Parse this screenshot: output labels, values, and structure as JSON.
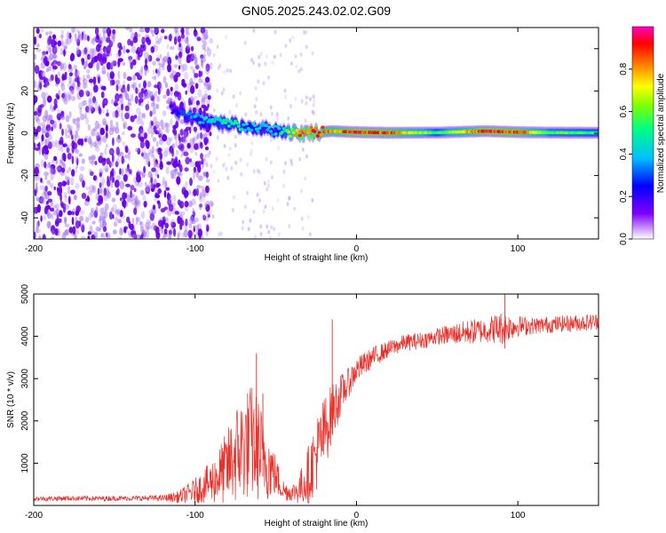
{
  "title": "GN05.2025.243.02.02.G09",
  "colors": {
    "snr_line": "#e8302a",
    "spectrogram_sparse": "#a070f0",
    "spectrogram_dense": "#6a00e8"
  },
  "chart_data": [
    {
      "type": "heatmap",
      "title": "GN05.2025.243.02.02.G09",
      "xlabel": "Height of straight line (km)",
      "ylabel": "Frequency (Hz)",
      "xlim": [
        -200,
        150
      ],
      "ylim": [
        -50,
        50
      ],
      "x_ticks": [
        -200,
        -100,
        0,
        100
      ],
      "x_tick_labels": [
        "-200",
        "-100",
        "0",
        "100"
      ],
      "y_ticks": [
        -40,
        -20,
        0,
        20,
        40
      ],
      "y_tick_labels": [
        "-40",
        "-20",
        "0",
        "20",
        "40"
      ],
      "colorbar": {
        "label": "Normalized spectral amplitude",
        "range": [
          0,
          1
        ],
        "ticks": [
          0,
          0.2,
          0.4,
          0.6,
          0.8
        ],
        "tick_labels": [
          "0.0",
          "0.2",
          "0.4",
          "0.6",
          "0.8"
        ],
        "colormap": [
          "#ffffff",
          "#8000ff",
          "#0000ff",
          "#00c0ff",
          "#00ff80",
          "#80ff00",
          "#ffff00",
          "#ff8000",
          "#ff0000",
          "#ff00c0"
        ]
      },
      "ridge": {
        "x": [
          -115,
          -105,
          -95,
          -85,
          -75,
          -65,
          -55,
          -45,
          -35,
          -25,
          -15,
          0,
          20,
          50,
          80,
          100,
          120,
          150
        ],
        "freq": [
          12,
          8,
          6,
          5,
          4,
          3,
          2,
          1,
          0,
          0.5,
          1,
          0.5,
          0.2,
          0.3,
          1,
          0.5,
          0.3,
          0.2
        ],
        "amplitude": [
          0.2,
          0.3,
          0.4,
          0.45,
          0.45,
          0.4,
          0.35,
          0.45,
          0.85,
          0.9,
          0.8,
          0.95,
          0.9,
          0.5,
          0.95,
          0.9,
          0.55,
          0.5
        ]
      },
      "noise_region": {
        "x_range": [
          -200,
          -95
        ],
        "description_amplitude": 0.2
      }
    },
    {
      "type": "line",
      "xlabel": "Height of straight line (km)",
      "ylabel": "SNR (10 * v/v)",
      "xlim": [
        -200,
        150
      ],
      "ylim": [
        0,
        5000
      ],
      "x_ticks": [
        -200,
        -100,
        0,
        100
      ],
      "x_tick_labels": [
        "-200",
        "-100",
        "0",
        "100"
      ],
      "y_ticks": [
        1000,
        2000,
        3000,
        4000,
        5000
      ],
      "y_tick_labels": [
        "1000",
        "2000",
        "3000",
        "4000",
        "5000"
      ],
      "series": [
        {
          "name": "SNR",
          "x": [
            -200,
            -180,
            -160,
            -140,
            -120,
            -110,
            -100,
            -90,
            -80,
            -75,
            -70,
            -65,
            -60,
            -55,
            -50,
            -45,
            -40,
            -35,
            -30,
            -25,
            -20,
            -15,
            -10,
            -5,
            0,
            10,
            20,
            30,
            40,
            50,
            60,
            70,
            80,
            90,
            100,
            110,
            120,
            130,
            140,
            150
          ],
          "y": [
            160,
            170,
            165,
            170,
            175,
            200,
            350,
            550,
            900,
            1200,
            1400,
            1500,
            1300,
            1000,
            700,
            350,
            300,
            400,
            700,
            1200,
            1700,
            2200,
            2600,
            2900,
            3200,
            3500,
            3700,
            3850,
            3900,
            4000,
            4050,
            4100,
            4150,
            4200,
            4250,
            4250,
            4280,
            4300,
            4320,
            4350
          ],
          "noise_amplitude": [
            60,
            60,
            60,
            60,
            70,
            150,
            300,
            500,
            900,
            1200,
            1300,
            1400,
            1200,
            900,
            500,
            250,
            200,
            400,
            700,
            900,
            900,
            700,
            500,
            350,
            300,
            250,
            200,
            200,
            200,
            200,
            250,
            300,
            300,
            400,
            250,
            200,
            200,
            200,
            200,
            200
          ]
        }
      ],
      "spikes": [
        {
          "x": -62,
          "y": 3600
        },
        {
          "x": -58,
          "y": 2650
        },
        {
          "x": -15,
          "y": 4400
        },
        {
          "x": 92,
          "y": 5000
        }
      ]
    }
  ]
}
